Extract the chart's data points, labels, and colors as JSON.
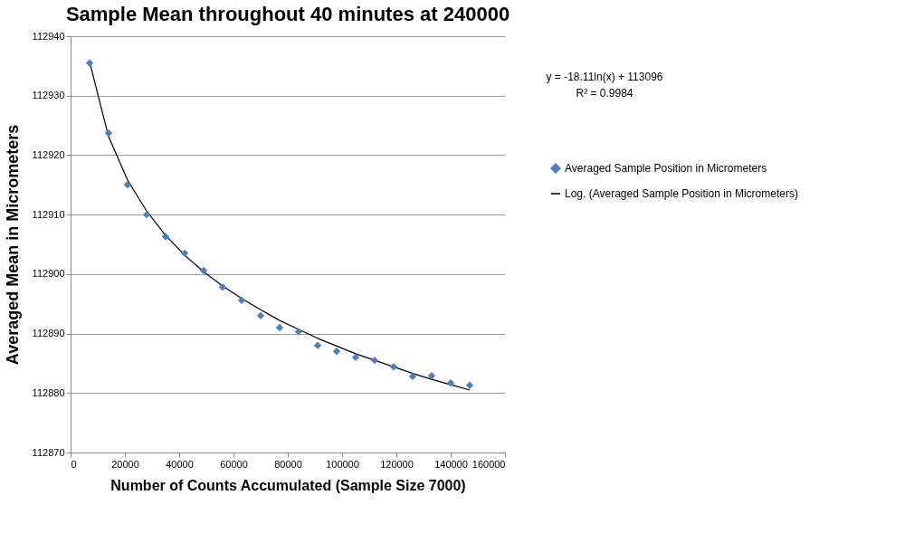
{
  "chart_data": {
    "type": "scatter",
    "title": "Sample Mean throughout 40 minutes at 240000",
    "xlabel": "Number of Counts Accumulated (Sample Size 7000)",
    "ylabel": "Averaged Mean in Micrometers",
    "xlim": [
      0,
      160000
    ],
    "xticks": [
      0,
      20000,
      40000,
      60000,
      80000,
      100000,
      120000,
      140000,
      160000
    ],
    "ylim": [
      112870,
      112940
    ],
    "yticks": [
      112870,
      112880,
      112890,
      112900,
      112910,
      112920,
      112930,
      112940
    ],
    "grid": "y",
    "legend": "right",
    "marker": "diamond",
    "annotations": [
      "y = -18.11ln(x) + 113096",
      "R² = 0.9984"
    ],
    "series": [
      {
        "name": "Averaged Sample Position in Micrometers",
        "color": "#4f81bd",
        "x": [
          7000,
          14000,
          21000,
          28000,
          35000,
          42000,
          49000,
          56000,
          63000,
          70000,
          77000,
          84000,
          91000,
          98000,
          105000,
          112000,
          119000,
          126000,
          133000,
          140000,
          147000
        ],
        "values": [
          112935.5,
          112923.7,
          112915,
          112910,
          112906.3,
          112903.5,
          112900.6,
          112897.8,
          112895.6,
          112893,
          112891,
          112890.3,
          112888,
          112887,
          112886,
          112885.5,
          112884.4,
          112882.8,
          112882.9,
          112881.7,
          112881.3
        ]
      },
      {
        "name": "Log. (Averaged Sample Position in Micrometers)",
        "type": "line",
        "color": "#000000",
        "marker": "none",
        "line_style": "solid",
        "x": [
          7000,
          14000,
          21000,
          28000,
          35000,
          42000,
          49000,
          56000,
          63000,
          70000,
          77000,
          84000,
          91000,
          98000,
          105000,
          112000,
          119000,
          126000,
          133000,
          140000,
          147000
        ],
        "values": [
          112935.7,
          112923.1,
          112915.8,
          112910.6,
          112906.5,
          112903.2,
          112900.4,
          112898.0,
          112895.9,
          112894.0,
          112892.2,
          112890.7,
          112889.2,
          112887.9,
          112886.6,
          112885.5,
          112884.4,
          112883.3,
          112882.3,
          112881.4,
          112880.5
        ]
      }
    ]
  }
}
